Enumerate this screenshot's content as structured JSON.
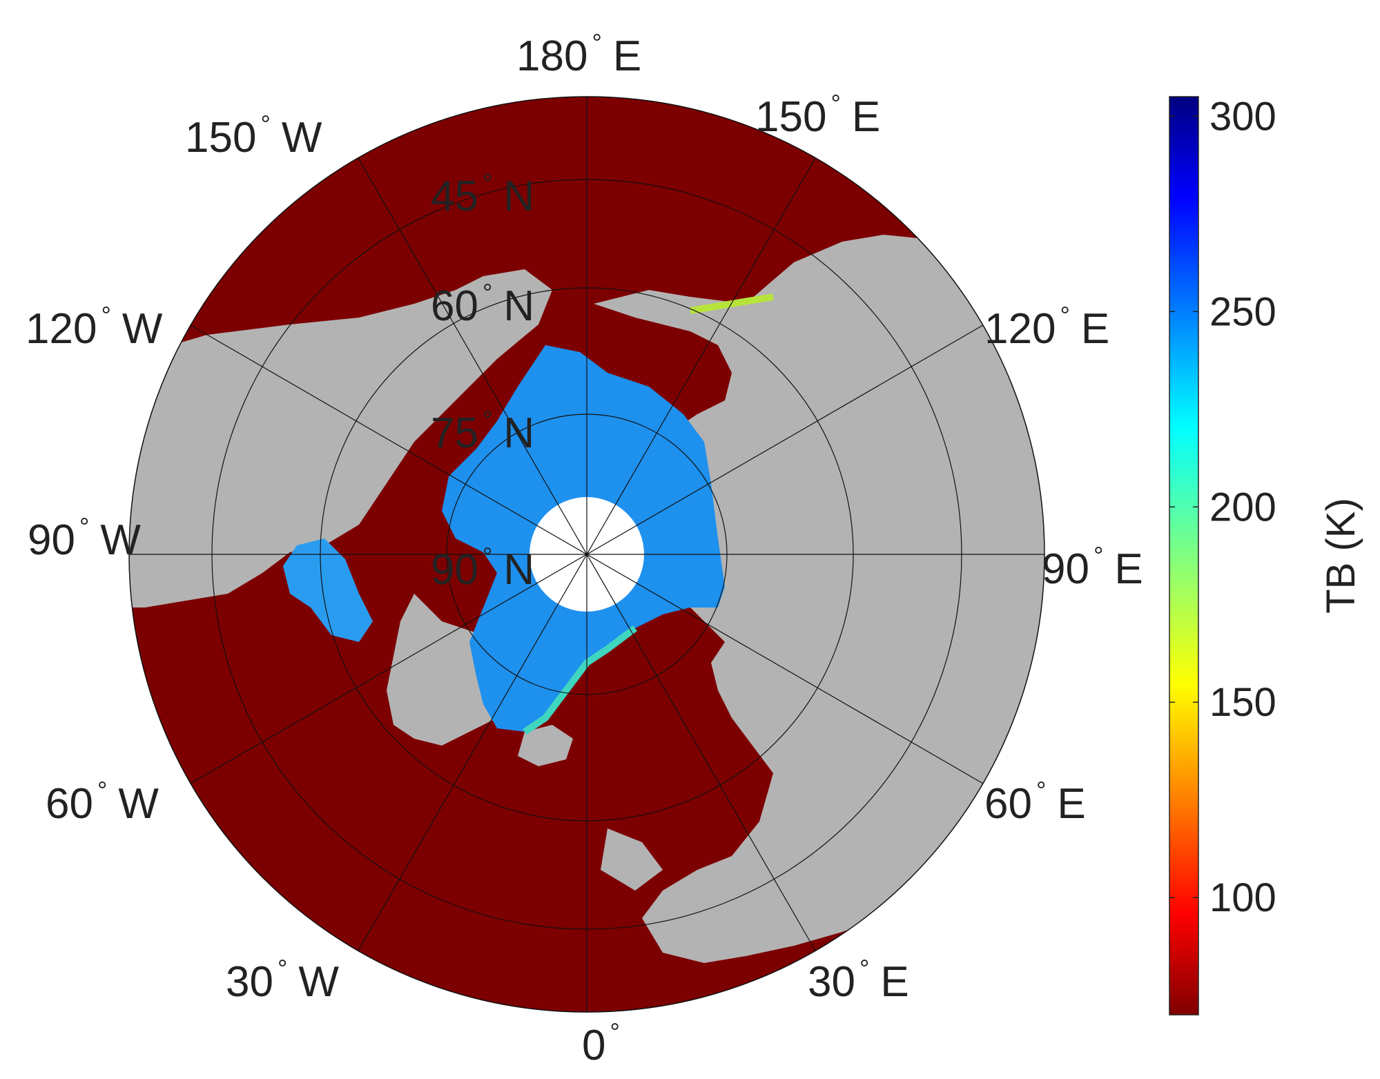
{
  "map": {
    "projection": "north-polar-stereographic",
    "colors": {
      "ocean_low_tb": "#7d0000",
      "land": "#b3b3b3",
      "ice": "#1e90ee",
      "pole_hole": "#ffffff",
      "grid": "#111111"
    },
    "longitude_labels": [
      {
        "deg": "180",
        "hem": "E"
      },
      {
        "deg": "150",
        "hem": "E"
      },
      {
        "deg": "120",
        "hem": "E"
      },
      {
        "deg": "90",
        "hem": "E"
      },
      {
        "deg": "60",
        "hem": "E"
      },
      {
        "deg": "30",
        "hem": "E"
      },
      {
        "deg": "0",
        "hem": ""
      },
      {
        "deg": "30",
        "hem": "W"
      },
      {
        "deg": "60",
        "hem": "W"
      },
      {
        "deg": "90",
        "hem": "W"
      },
      {
        "deg": "120",
        "hem": "W"
      },
      {
        "deg": "150",
        "hem": "W"
      }
    ],
    "latitude_labels": [
      {
        "deg": "45",
        "hem": "N"
      },
      {
        "deg": "60",
        "hem": "N"
      },
      {
        "deg": "75",
        "hem": "N"
      },
      {
        "deg": "90",
        "hem": "N"
      }
    ]
  },
  "colorbar": {
    "label": "TB (K)",
    "ticks": [
      "300",
      "250",
      "200",
      "150",
      "100"
    ],
    "tick_values": [
      300,
      250,
      200,
      150,
      100
    ],
    "range": [
      70,
      305
    ],
    "colormap": "jet"
  }
}
